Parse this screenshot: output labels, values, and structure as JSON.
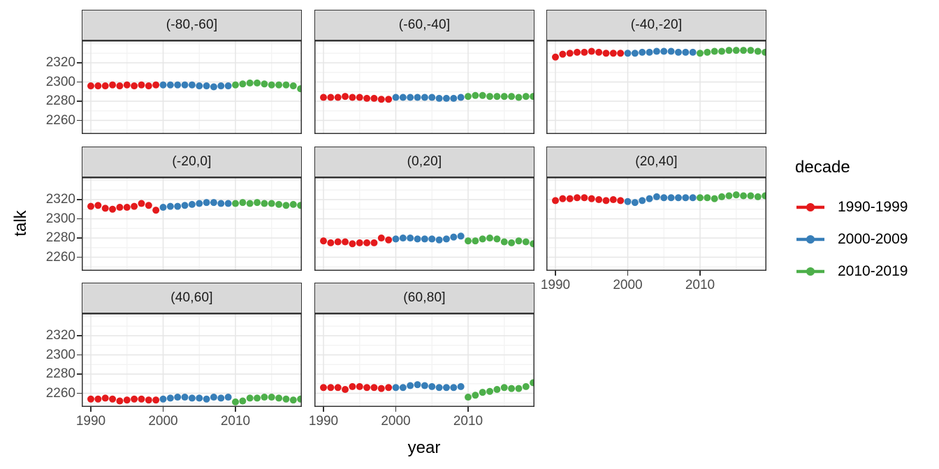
{
  "chart_data": {
    "type": "scatter",
    "title": "",
    "xlabel": "year",
    "ylabel": "talk",
    "grid": true,
    "x_ticks": [
      1990,
      2000,
      2010
    ],
    "x_minor_ticks": [
      1995,
      2005,
      2015
    ],
    "y_ticks": [
      2320,
      2300,
      2280,
      2260
    ],
    "y_minor_gridlines": [
      2340,
      2330,
      2310,
      2290,
      2270,
      2250
    ],
    "xlim": [
      1988.7,
      2020.4
    ],
    "ylim": [
      2246,
      2343
    ],
    "legend": {
      "title": "decade",
      "position": "right",
      "entries": [
        {
          "label": "1990-1999",
          "color": "#E41A1C",
          "start_year": 1990
        },
        {
          "label": "2000-2009",
          "color": "#377EB8",
          "start_year": 2000
        },
        {
          "label": "2010-2019",
          "color": "#4DAF4A",
          "start_year": 2010
        }
      ]
    },
    "facets": [
      {
        "label": "(-80,-60]",
        "values": [
          [
            2296,
            2296,
            2296,
            2297,
            2296,
            2297,
            2296,
            2297,
            2296,
            2297
          ],
          [
            2297,
            2297,
            2297,
            2297,
            2297,
            2296,
            2296,
            2295,
            2296,
            2296
          ],
          [
            2297,
            2298,
            2299,
            2299,
            2298,
            2297,
            2297,
            2297,
            2296,
            2293
          ]
        ]
      },
      {
        "label": "(-60,-40]",
        "values": [
          [
            2284,
            2284,
            2284,
            2285,
            2284,
            2284,
            2283,
            2283,
            2282,
            2282
          ],
          [
            2284,
            2284,
            2284,
            2284,
            2284,
            2284,
            2283,
            2283,
            2283,
            2284
          ],
          [
            2285,
            2286,
            2286,
            2285,
            2285,
            2285,
            2285,
            2284,
            2285,
            2285
          ]
        ]
      },
      {
        "label": "(-40,-20]",
        "values": [
          [
            2326,
            2329,
            2330,
            2331,
            2331,
            2332,
            2331,
            2330,
            2330,
            2330
          ],
          [
            2330,
            2330,
            2331,
            2331,
            2332,
            2332,
            2332,
            2331,
            2331,
            2331
          ],
          [
            2330,
            2331,
            2332,
            2332,
            2333,
            2333,
            2333,
            2333,
            2332,
            2331
          ]
        ]
      },
      {
        "label": "(-20,0]",
        "values": [
          [
            2313,
            2314,
            2311,
            2310,
            2312,
            2312,
            2313,
            2316,
            2314,
            2309
          ],
          [
            2312,
            2313,
            2313,
            2314,
            2315,
            2316,
            2317,
            2317,
            2316,
            2316
          ],
          [
            2316,
            2317,
            2316,
            2317,
            2316,
            2316,
            2315,
            2314,
            2315,
            2314
          ]
        ]
      },
      {
        "label": "(0,20]",
        "values": [
          [
            2277,
            2275,
            2276,
            2276,
            2274,
            2275,
            2275,
            2275,
            2280,
            2278
          ],
          [
            2279,
            2280,
            2280,
            2279,
            2279,
            2279,
            2278,
            2279,
            2281,
            2282
          ],
          [
            2277,
            2277,
            2279,
            2280,
            2279,
            2276,
            2275,
            2277,
            2276,
            2274
          ]
        ]
      },
      {
        "label": "(20,40]",
        "values": [
          [
            2319,
            2321,
            2321,
            2322,
            2322,
            2321,
            2320,
            2319,
            2320,
            2319
          ],
          [
            2318,
            2317,
            2319,
            2321,
            2323,
            2322,
            2322,
            2322,
            2322,
            2322
          ],
          [
            2322,
            2322,
            2321,
            2323,
            2324,
            2325,
            2324,
            2324,
            2323,
            2324
          ]
        ]
      },
      {
        "label": "(40,60]",
        "values": [
          [
            2254,
            2254,
            2255,
            2254,
            2252,
            2253,
            2254,
            2254,
            2253,
            2253
          ],
          [
            2254,
            2255,
            2256,
            2256,
            2255,
            2255,
            2254,
            2256,
            2255,
            2256
          ],
          [
            2251,
            2252,
            2255,
            2255,
            2256,
            2256,
            2255,
            2254,
            2253,
            2254
          ]
        ]
      },
      {
        "label": "(60,80]",
        "values": [
          [
            2266,
            2266,
            2266,
            2264,
            2267,
            2267,
            2266,
            2266,
            2265,
            2266
          ],
          [
            2266,
            2266,
            2268,
            2269,
            2268,
            2267,
            2266,
            2266,
            2266,
            2267
          ],
          [
            2256,
            2258,
            2261,
            2262,
            2264,
            2266,
            2265,
            2265,
            2267,
            2271
          ]
        ]
      }
    ]
  },
  "style_colors": {
    "strip_bg": "#D9D9D9",
    "panel_border": "#333333",
    "grid_major": "#E6E6E6",
    "grid_minor": "#F3F3F3",
    "tick_text": "#4D4D4D",
    "title_text": "#000000"
  }
}
